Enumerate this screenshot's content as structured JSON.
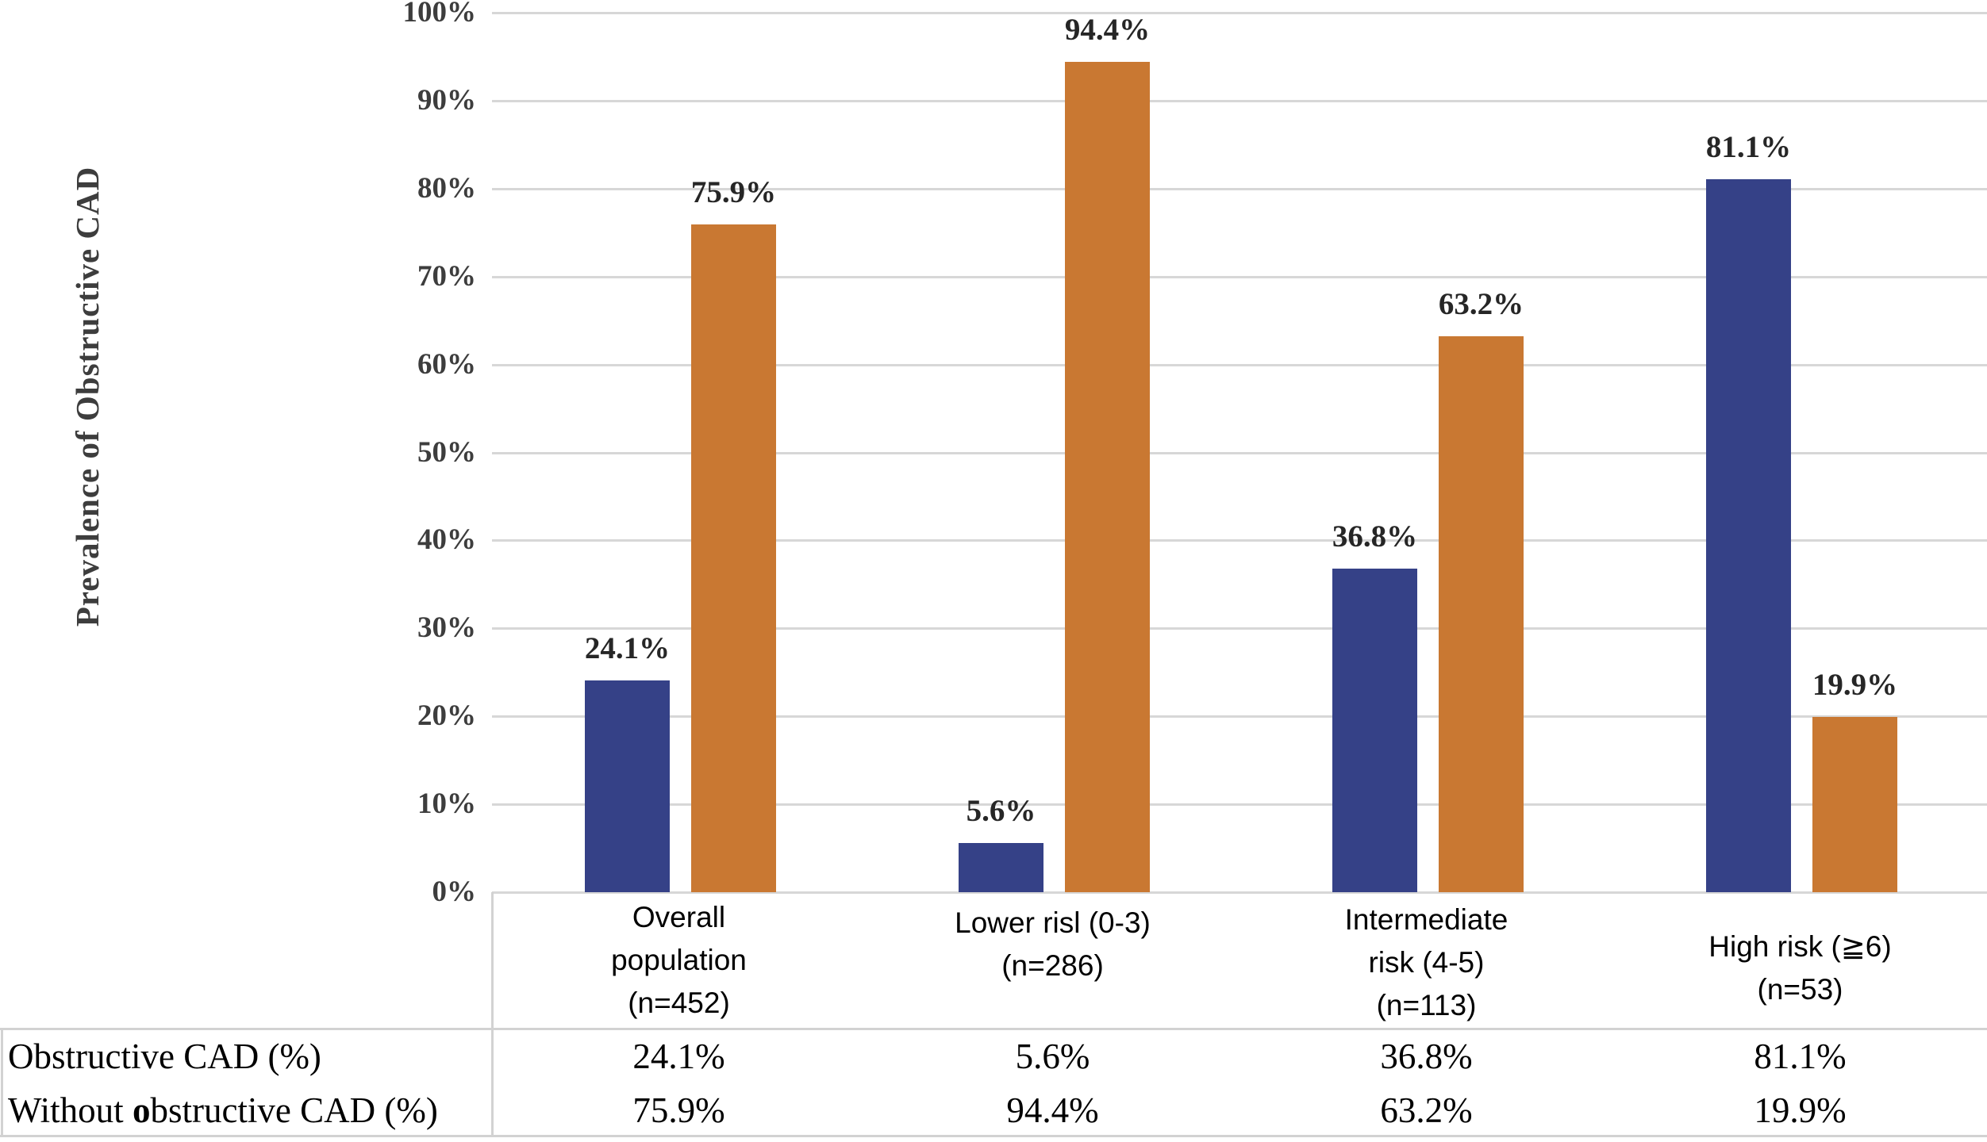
{
  "chart_data": {
    "type": "bar",
    "title": "",
    "xlabel": "",
    "ylabel": "Prevalence of Obstructive CAD",
    "ylim": [
      0,
      100
    ],
    "ytick_step": 10,
    "ytick_labels": [
      "0%",
      "10%",
      "20%",
      "30%",
      "40%",
      "50%",
      "60%",
      "70%",
      "80%",
      "90%",
      "100%"
    ],
    "grid": true,
    "legend_position": "none",
    "categories": [
      {
        "lines": [
          "Overall",
          "population",
          "(n=452)"
        ]
      },
      {
        "lines": [
          "Lower risl (0-3)",
          "(n=286)"
        ]
      },
      {
        "lines": [
          "Intermediate",
          "risk (4-5)",
          "(n=113)"
        ]
      },
      {
        "lines": [
          "High risk (≧6)",
          "(n=53)"
        ]
      }
    ],
    "series": [
      {
        "name": "Obstructive CAD (%)",
        "color": "#354187",
        "values": [
          24.1,
          5.6,
          36.8,
          81.1
        ],
        "labels": [
          "24.1%",
          "5.6%",
          "36.8%",
          "81.1%"
        ]
      },
      {
        "name": "Without obstructive CAD (%)",
        "color": "#c97832",
        "values": [
          75.9,
          94.4,
          63.2,
          19.9
        ],
        "labels": [
          "75.9%",
          "94.4%",
          "63.2%",
          "19.9%"
        ]
      }
    ]
  },
  "table": {
    "rows": [
      {
        "label_parts": [
          "Obstructive CAD (%)",
          "",
          ""
        ],
        "values": [
          "24.1%",
          "5.6%",
          "36.8%",
          "81.1%"
        ]
      },
      {
        "label_parts": [
          "Without ",
          "o",
          "bstructive CAD (%)"
        ],
        "values": [
          "75.9%",
          "94.4%",
          "63.2%",
          "19.9%"
        ]
      }
    ]
  },
  "colors": {
    "bar_blue": "#354187",
    "bar_orange": "#c97832",
    "gridline": "#d7d7d7",
    "table_border": "#d2d2d2",
    "axis_text": "#3d3d3d",
    "label_text": "#262626"
  }
}
